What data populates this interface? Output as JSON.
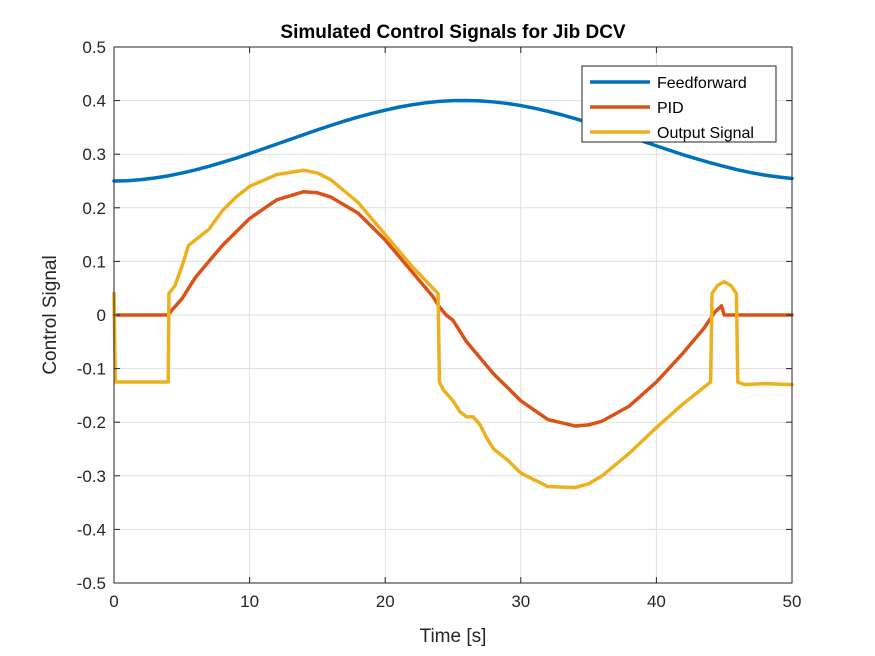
{
  "chart_data": {
    "type": "line",
    "title": "Simulated Control Signals for Jib DCV",
    "xlabel": "Time [s]",
    "ylabel": "Control Signal",
    "xlim": [
      0,
      50
    ],
    "ylim": [
      -0.5,
      0.5
    ],
    "xticks": [
      0,
      10,
      20,
      30,
      40,
      50
    ],
    "yticks": [
      -0.5,
      -0.4,
      -0.3,
      -0.2,
      -0.1,
      0,
      0.1,
      0.2,
      0.3,
      0.4,
      0.5
    ],
    "xtick_labels": [
      "0",
      "10",
      "20",
      "30",
      "40",
      "50"
    ],
    "ytick_labels": [
      "-0.5",
      "-0.4",
      "-0.3",
      "-0.2",
      "-0.1",
      "0",
      "0.1",
      "0.2",
      "0.3",
      "0.4",
      "0.5"
    ],
    "grid": true,
    "legend_position": "top-right",
    "series": [
      {
        "name": "Feedforward",
        "color": "#0072BD",
        "x": [
          0,
          1,
          2,
          3,
          4,
          5,
          6,
          7,
          8,
          9,
          10,
          11,
          12,
          13,
          14,
          15,
          16,
          17,
          18,
          19,
          20,
          21,
          22,
          23,
          24,
          25,
          26,
          27,
          28,
          29,
          30,
          31,
          32,
          33,
          34,
          35,
          36,
          37,
          38,
          39,
          40,
          41,
          42,
          43,
          44,
          45,
          46,
          47,
          48,
          49,
          50
        ],
        "y": [
          0.25,
          0.2505,
          0.2525,
          0.2556,
          0.2596,
          0.2648,
          0.2706,
          0.2774,
          0.2849,
          0.2926,
          0.3012,
          0.3099,
          0.3188,
          0.3277,
          0.3365,
          0.3454,
          0.3538,
          0.3618,
          0.3692,
          0.3761,
          0.3822,
          0.3878,
          0.3923,
          0.3959,
          0.3986,
          0.3999,
          0.4002,
          0.3994,
          0.3975,
          0.3947,
          0.3907,
          0.3858,
          0.3801,
          0.3736,
          0.3664,
          0.3588,
          0.3505,
          0.3418,
          0.3332,
          0.3242,
          0.3155,
          0.3071,
          0.2987,
          0.2911,
          0.2838,
          0.2771,
          0.2709,
          0.2655,
          0.2609,
          0.2574,
          0.2547
        ]
      },
      {
        "name": "PID",
        "color": "#D95319",
        "x": [
          0,
          4,
          4.3,
          5,
          6,
          8,
          10,
          12,
          14,
          15,
          16,
          18,
          20,
          22,
          23.5,
          24,
          24.5,
          25,
          26,
          28,
          30,
          32,
          34,
          35,
          36,
          38,
          40,
          42,
          43.5,
          44.3,
          44.8,
          45,
          46,
          50
        ],
        "y": [
          0,
          0,
          0.01,
          0.03,
          0.07,
          0.13,
          0.18,
          0.215,
          0.23,
          0.228,
          0.22,
          0.19,
          0.14,
          0.08,
          0.035,
          0.015,
          0.0,
          -0.01,
          -0.05,
          -0.11,
          -0.16,
          -0.195,
          -0.207,
          -0.205,
          -0.198,
          -0.17,
          -0.125,
          -0.07,
          -0.025,
          0.005,
          0.017,
          0.0,
          0,
          0
        ]
      },
      {
        "name": "Output Signal",
        "color": "#EDB120",
        "x": [
          0,
          0.1,
          0.2,
          4,
          4.05,
          4.5,
          5,
          5.5,
          6,
          7,
          8,
          9,
          10,
          12,
          14,
          15,
          16,
          18,
          20,
          22,
          23.9,
          24,
          24.3,
          25,
          25.5,
          26,
          26.5,
          27,
          27.5,
          28,
          29,
          30,
          32,
          34,
          35,
          36,
          38,
          40,
          42,
          44,
          44.1,
          44.5,
          45,
          45.5,
          45.9,
          46,
          46.5,
          48,
          50
        ],
        "y": [
          0.04,
          -0.125,
          -0.125,
          -0.125,
          0.04,
          0.055,
          0.09,
          0.13,
          0.14,
          0.16,
          0.195,
          0.22,
          0.24,
          0.262,
          0.27,
          0.265,
          0.252,
          0.21,
          0.15,
          0.09,
          0.04,
          -0.125,
          -0.14,
          -0.16,
          -0.18,
          -0.19,
          -0.19,
          -0.205,
          -0.23,
          -0.25,
          -0.27,
          -0.295,
          -0.32,
          -0.322,
          -0.315,
          -0.3,
          -0.258,
          -0.21,
          -0.165,
          -0.125,
          0.04,
          0.055,
          0.062,
          0.055,
          0.04,
          -0.125,
          -0.13,
          -0.128,
          -0.13
        ]
      }
    ]
  }
}
